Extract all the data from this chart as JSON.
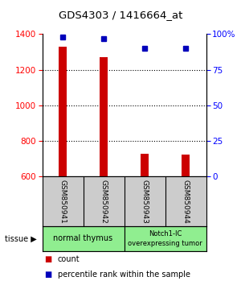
{
  "title": "GDS4303 / 1416664_at",
  "samples": [
    "GSM850941",
    "GSM850942",
    "GSM850943",
    "GSM850944"
  ],
  "counts": [
    1330,
    1270,
    730,
    725
  ],
  "percentiles": [
    98,
    97,
    90,
    90
  ],
  "ylim_left": [
    600,
    1400
  ],
  "ylim_right": [
    0,
    100
  ],
  "yticks_left": [
    600,
    800,
    1000,
    1200,
    1400
  ],
  "yticks_right": [
    0,
    25,
    50,
    75,
    100
  ],
  "ytick_labels_right": [
    "0",
    "25",
    "50",
    "75",
    "100%"
  ],
  "bar_color": "#cc0000",
  "marker_color": "#0000bb",
  "bar_width": 0.18,
  "sample_box_color": "#cccccc",
  "group1_label": "normal thymus",
  "group2_label": "Notch1-IC\noverexpressing tumor",
  "group_color": "#90ee90",
  "tissue_label": "tissue",
  "legend_count_label": "count",
  "legend_pct_label": "percentile rank within the sample"
}
